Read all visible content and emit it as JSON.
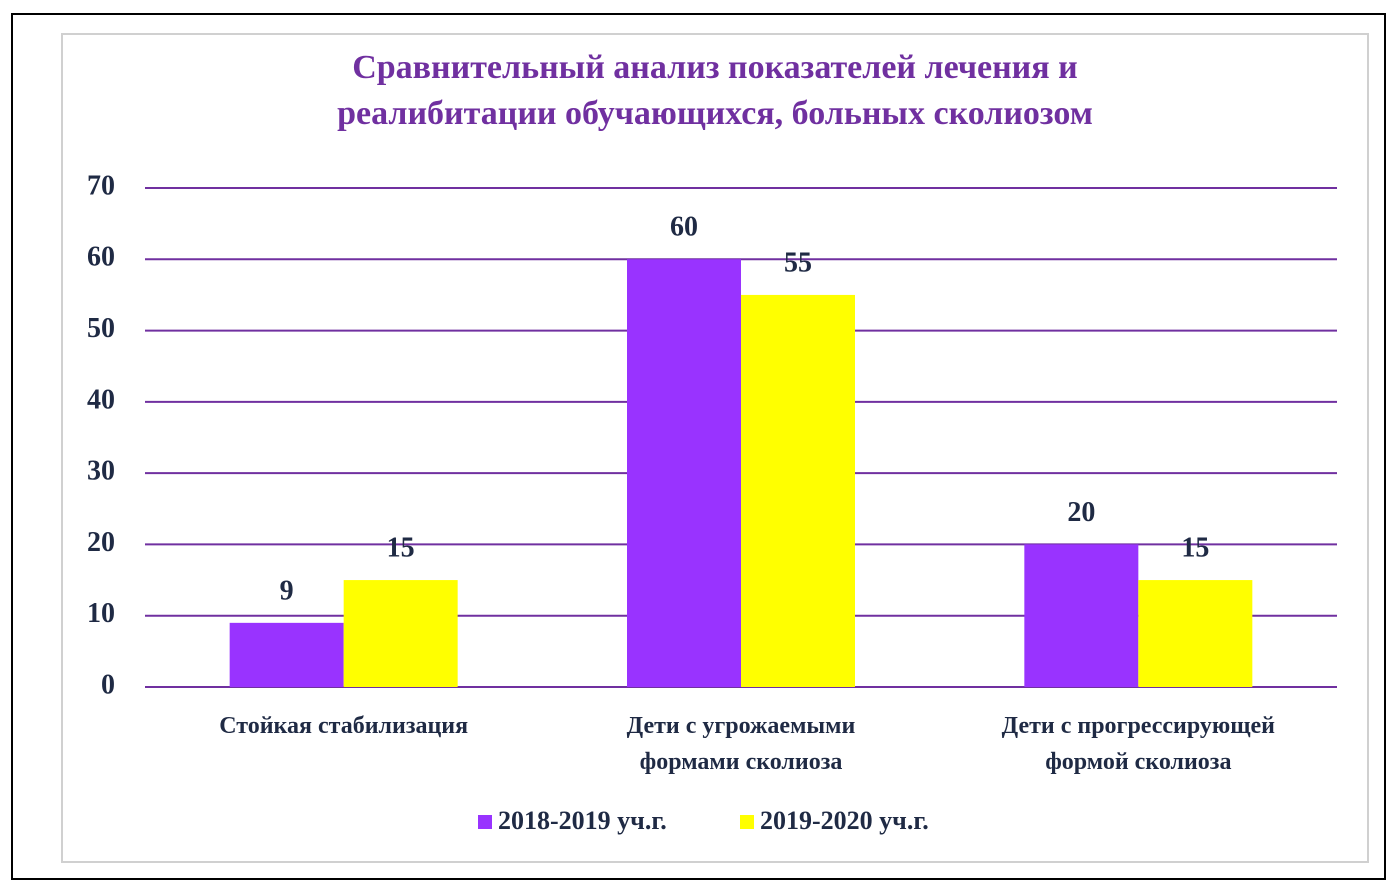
{
  "chart_data": {
    "type": "bar",
    "title": [
      "Сравнительный анализ показателей лечения и",
      "реалибитации обучающихся, больных сколиозом"
    ],
    "categories": [
      "Стойкая стабилизация",
      "Дети с угрожаемыми формами сколиоза",
      "Дети с прогрессирующей формой сколиоза"
    ],
    "series": [
      {
        "name": "2018-2019 уч.г.",
        "color": "#9933ff",
        "values": [
          9,
          60,
          20
        ]
      },
      {
        "name": "2019-2020 уч.г.",
        "color": "#ffff00",
        "values": [
          15,
          55,
          15
        ]
      }
    ],
    "ylim": [
      0,
      70
    ],
    "yticks": [
      0,
      10,
      20,
      30,
      40,
      50,
      60,
      70
    ],
    "grid": true,
    "grid_color": "#7030a0",
    "legend": "bottom"
  }
}
